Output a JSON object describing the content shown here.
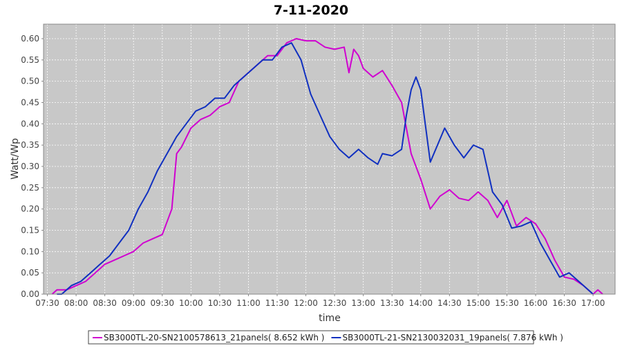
{
  "chart_data": {
    "type": "line",
    "title": "7-11-2020",
    "x_label": "time",
    "y_label": "Watt/Wp",
    "xlim": [
      "07:26",
      "17:23"
    ],
    "ylim": [
      0,
      0.634
    ],
    "grid": true,
    "legend": "bottom",
    "xticks": [
      "07:30",
      "08:00",
      "08:30",
      "09:00",
      "09:30",
      "10:00",
      "10:30",
      "11:00",
      "11:30",
      "12:00",
      "12:30",
      "13:00",
      "13:30",
      "14:00",
      "14:30",
      "15:00",
      "15:30",
      "16:00",
      "16:30",
      "17:00"
    ],
    "yticks": [
      {
        "value": 0,
        "label": "0.00"
      },
      {
        "value": 0.05,
        "label": "0.05"
      },
      {
        "value": 0.1,
        "label": "0.10"
      },
      {
        "value": 0.15,
        "label": "0.15"
      },
      {
        "value": 0.2,
        "label": "0.20"
      },
      {
        "value": 0.25,
        "label": "0.25"
      },
      {
        "value": 0.3,
        "label": "0.30"
      },
      {
        "value": 0.35,
        "label": "0.35"
      },
      {
        "value": 0.4,
        "label": "0.40"
      },
      {
        "value": 0.45,
        "label": "0.45"
      },
      {
        "value": 0.5,
        "label": "0.50"
      },
      {
        "value": 0.55,
        "label": "0.55"
      },
      {
        "value": 0.6,
        "label": "0.60"
      }
    ],
    "series": [
      {
        "name": "SB3000TL-20-SN2100578613_21panels( 8.652 kWh )",
        "color": "#d000d0",
        "x": [
          "07:35",
          "07:40",
          "07:50",
          "08:00",
          "08:10",
          "08:20",
          "08:30",
          "08:40",
          "08:50",
          "09:00",
          "09:10",
          "09:20",
          "09:30",
          "09:40",
          "09:45",
          "09:50",
          "10:00",
          "10:10",
          "10:20",
          "10:30",
          "10:40",
          "10:50",
          "11:00",
          "11:10",
          "11:20",
          "11:30",
          "11:40",
          "11:50",
          "12:00",
          "12:10",
          "12:20",
          "12:30",
          "12:40",
          "12:45",
          "12:50",
          "12:55",
          "13:00",
          "13:10",
          "13:20",
          "13:30",
          "13:40",
          "13:50",
          "14:00",
          "14:10",
          "14:20",
          "14:30",
          "14:40",
          "14:50",
          "15:00",
          "15:10",
          "15:20",
          "15:30",
          "15:40",
          "15:50",
          "16:00",
          "16:10",
          "16:20",
          "16:30",
          "16:40",
          "16:50",
          "17:00",
          "17:05",
          "17:10"
        ],
        "values": [
          0.0,
          0.01,
          0.01,
          0.02,
          0.03,
          0.05,
          0.07,
          0.08,
          0.09,
          0.1,
          0.12,
          0.13,
          0.14,
          0.2,
          0.33,
          0.345,
          0.39,
          0.41,
          0.42,
          0.44,
          0.45,
          0.5,
          0.52,
          0.54,
          0.56,
          0.56,
          0.59,
          0.6,
          0.595,
          0.595,
          0.58,
          0.575,
          0.58,
          0.52,
          0.575,
          0.56,
          0.53,
          0.51,
          0.525,
          0.49,
          0.45,
          0.33,
          0.27,
          0.2,
          0.23,
          0.245,
          0.225,
          0.22,
          0.24,
          0.22,
          0.18,
          0.22,
          0.16,
          0.18,
          0.165,
          0.13,
          0.08,
          0.04,
          0.035,
          0.02,
          0.0,
          0.01,
          0.0
        ]
      },
      {
        "name": "SB3000TL-21-SN2130032031_19panels( 7.876 kWh )",
        "color": "#1030c0",
        "x": [
          "07:40",
          "07:45",
          "07:55",
          "08:05",
          "08:15",
          "08:25",
          "08:35",
          "08:45",
          "08:55",
          "09:05",
          "09:15",
          "09:25",
          "09:35",
          "09:45",
          "09:55",
          "10:05",
          "10:15",
          "10:25",
          "10:35",
          "10:45",
          "10:55",
          "11:05",
          "11:15",
          "11:25",
          "11:35",
          "11:45",
          "11:55",
          "12:05",
          "12:15",
          "12:25",
          "12:35",
          "12:45",
          "12:55",
          "13:05",
          "13:15",
          "13:20",
          "13:30",
          "13:40",
          "13:45",
          "13:50",
          "13:55",
          "14:00",
          "14:10",
          "14:25",
          "14:35",
          "14:45",
          "14:55",
          "15:05",
          "15:15",
          "15:25",
          "15:35",
          "15:45",
          "15:55",
          "16:05",
          "16:15",
          "16:25",
          "16:35",
          "16:45",
          "16:55",
          "17:00"
        ],
        "values": [
          0.0,
          0.0,
          0.02,
          0.03,
          0.05,
          0.07,
          0.09,
          0.12,
          0.15,
          0.2,
          0.24,
          0.29,
          0.33,
          0.37,
          0.4,
          0.43,
          0.44,
          0.46,
          0.46,
          0.49,
          0.51,
          0.53,
          0.55,
          0.55,
          0.58,
          0.59,
          0.55,
          0.47,
          0.42,
          0.37,
          0.34,
          0.32,
          0.34,
          0.32,
          0.305,
          0.33,
          0.325,
          0.34,
          0.42,
          0.48,
          0.51,
          0.48,
          0.31,
          0.39,
          0.35,
          0.32,
          0.35,
          0.34,
          0.24,
          0.21,
          0.155,
          0.16,
          0.17,
          0.12,
          0.08,
          0.04,
          0.05,
          0.03,
          0.01,
          0.0
        ]
      }
    ]
  }
}
